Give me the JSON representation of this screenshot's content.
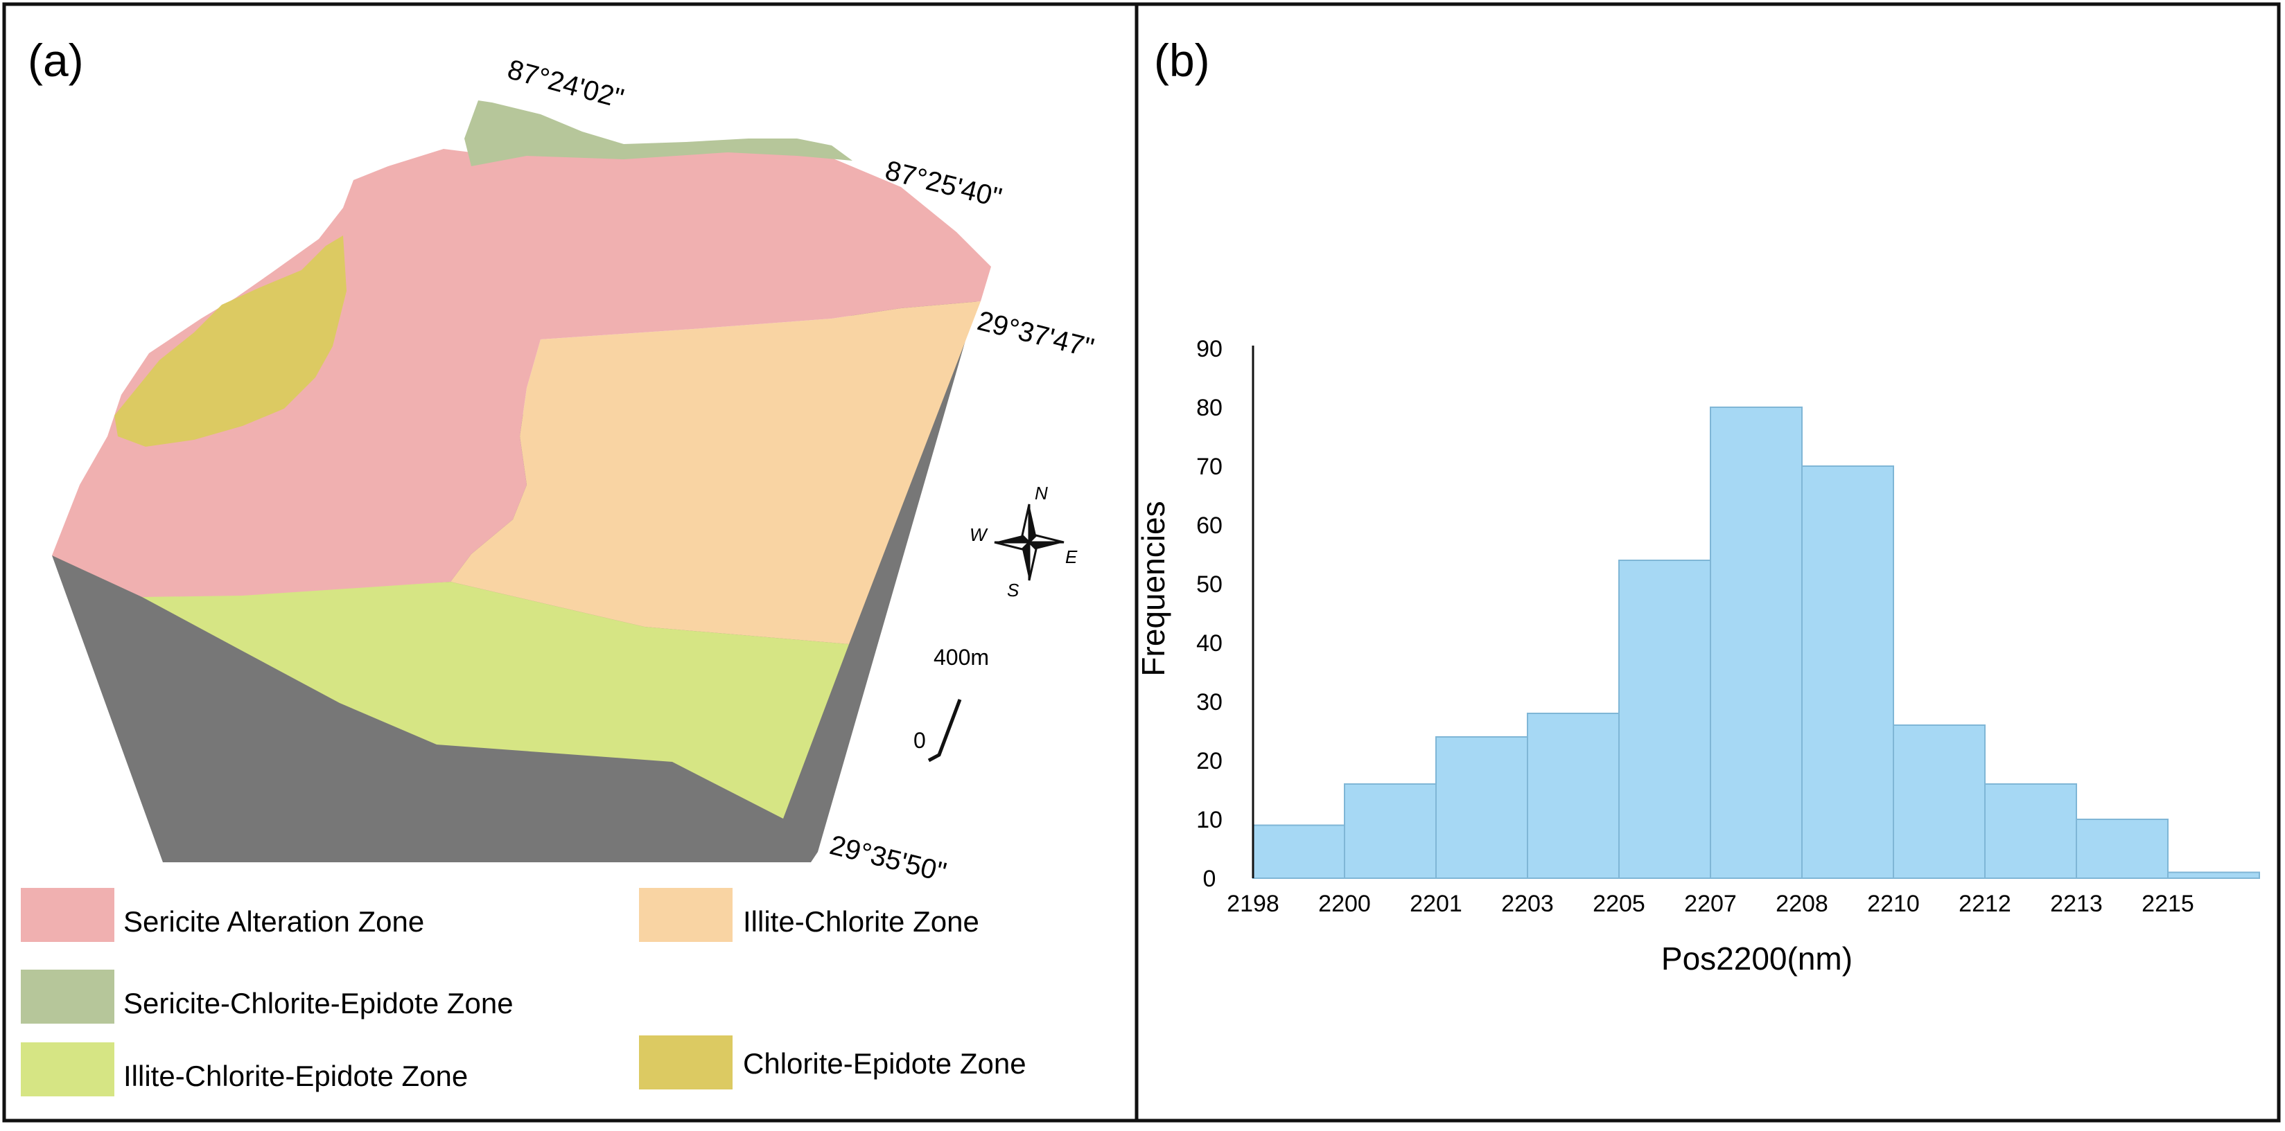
{
  "panels": {
    "a": {
      "label": "(a)"
    },
    "b": {
      "label": "(b)"
    }
  },
  "map": {
    "coordinates": {
      "top_left_lon": "87°24'02\"",
      "top_right_lon": "87°25'40\"",
      "right_top_lat": "29°37'47\"",
      "bottom_lat": "29°35'50\""
    },
    "compass": {
      "north": "N",
      "south": "S",
      "east": "E",
      "west": "W"
    },
    "scale": {
      "zero": "0",
      "length": "400m"
    },
    "zones": [
      {
        "name": "Sericite Alteration Zone",
        "color": "#f0b0b0"
      },
      {
        "name": "Illite-Chlorite Zone",
        "color": "#f9d4a3"
      },
      {
        "name": "Sericite-Chlorite-Epidote Zone",
        "color": "#b6c69a"
      },
      {
        "name": "Illite-Chlorite-Epidote Zone",
        "color": "#d6e584"
      },
      {
        "name": "Chlorite-Epidote Zone",
        "color": "#dcca62"
      }
    ],
    "side_color": "#777777"
  },
  "chart_data": {
    "type": "bar",
    "title": "",
    "xlabel": "Pos2200(nm)",
    "ylabel": "Frequencies",
    "x_tick_labels": [
      "2198",
      "2200",
      "2201",
      "2203",
      "2205",
      "2207",
      "2208",
      "2210",
      "2212",
      "2213",
      "2215"
    ],
    "bins": [
      {
        "start": 2198,
        "end": 2200,
        "value": 9
      },
      {
        "start": 2200,
        "end": 2201,
        "value": 16
      },
      {
        "start": 2201,
        "end": 2203,
        "value": 24
      },
      {
        "start": 2203,
        "end": 2205,
        "value": 28
      },
      {
        "start": 2205,
        "end": 2207,
        "value": 54
      },
      {
        "start": 2207,
        "end": 2208,
        "value": 80
      },
      {
        "start": 2208,
        "end": 2210,
        "value": 70
      },
      {
        "start": 2210,
        "end": 2212,
        "value": 26
      },
      {
        "start": 2212,
        "end": 2213,
        "value": 16
      },
      {
        "start": 2213,
        "end": 2215,
        "value": 10
      },
      {
        "start": 2215,
        "end": 2216,
        "value": 1
      }
    ],
    "y_ticks": [
      0,
      10,
      20,
      30,
      40,
      50,
      60,
      70,
      80,
      90
    ],
    "ylim": [
      0,
      90
    ],
    "bar_color": "#a6d8f4",
    "bar_edge_color": "#7fb6d6",
    "grid": false
  }
}
